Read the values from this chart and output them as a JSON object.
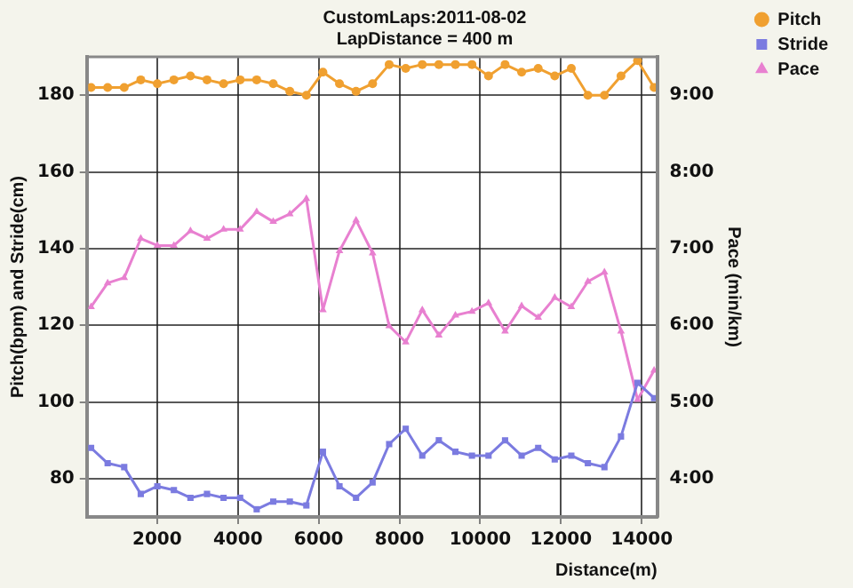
{
  "chart_data": {
    "type": "line",
    "title": "CustomLaps:2011-08-02",
    "subtitle": "LapDistance = 400 m",
    "xlabel": "Distance(m)",
    "ylabel": "Pitch(bpm) and Stride(cm)",
    "y2label": "Pace (min/km)",
    "x": [
      365,
      775,
      1185,
      1595,
      2005,
      2415,
      2825,
      3235,
      3645,
      4055,
      4465,
      4875,
      5285,
      5695,
      6105,
      6515,
      6925,
      7335,
      7745,
      8155,
      8565,
      8975,
      9385,
      9795,
      10205,
      10615,
      11025,
      11435,
      11845,
      12255,
      12665,
      13075,
      13485,
      13895,
      14305
    ],
    "series": [
      {
        "name": "Pitch",
        "color": "#f0a030",
        "marker": "circle",
        "values": [
          182,
          182,
          182,
          184,
          183,
          184,
          185,
          184,
          183,
          184,
          184,
          183,
          181,
          180,
          186,
          183,
          181,
          183,
          188,
          187,
          188,
          188,
          188,
          188,
          185,
          188,
          186,
          187,
          185,
          187,
          180,
          180,
          185,
          189,
          182
        ]
      },
      {
        "name": "Stride",
        "color": "#7b7be0",
        "marker": "square",
        "values": [
          88,
          84,
          83,
          76,
          78,
          77,
          75,
          76,
          75,
          75,
          72,
          74,
          74,
          73,
          87,
          78,
          75,
          79,
          89,
          93,
          86,
          90,
          87,
          86,
          86,
          90,
          86,
          88,
          85,
          86,
          84,
          83,
          91,
          105,
          101
        ]
      },
      {
        "name": "Pace",
        "color": "#e880d0",
        "marker": "triangle",
        "axis": "y2",
        "values": [
          6.24,
          6.55,
          6.62,
          7.13,
          7.04,
          7.04,
          7.23,
          7.13,
          7.25,
          7.25,
          7.48,
          7.35,
          7.45,
          7.65,
          6.2,
          6.97,
          7.37,
          6.94,
          5.99,
          5.78,
          6.2,
          5.87,
          6.13,
          6.18,
          6.29,
          5.92,
          6.25,
          6.1,
          6.36,
          6.24,
          6.57,
          6.69,
          5.92,
          5.03,
          5.41
        ]
      }
    ],
    "xlim": [
      260,
      14380
    ],
    "xticks": [
      2000,
      4000,
      6000,
      8000,
      10000,
      12000,
      14000
    ],
    "ylim": [
      70,
      190
    ],
    "yticks": [
      80,
      100,
      120,
      140,
      160,
      180
    ],
    "y2lim": [
      3.5,
      9.5
    ],
    "y2ticks": [
      {
        "value": 4,
        "label": "4:00"
      },
      {
        "value": 5,
        "label": "5:00"
      },
      {
        "value": 6,
        "label": "6:00"
      },
      {
        "value": 7,
        "label": "7:00"
      },
      {
        "value": 8,
        "label": "8:00"
      },
      {
        "value": 9,
        "label": "9:00"
      }
    ],
    "grid": true,
    "line_style": "solid",
    "legend": "top right"
  }
}
